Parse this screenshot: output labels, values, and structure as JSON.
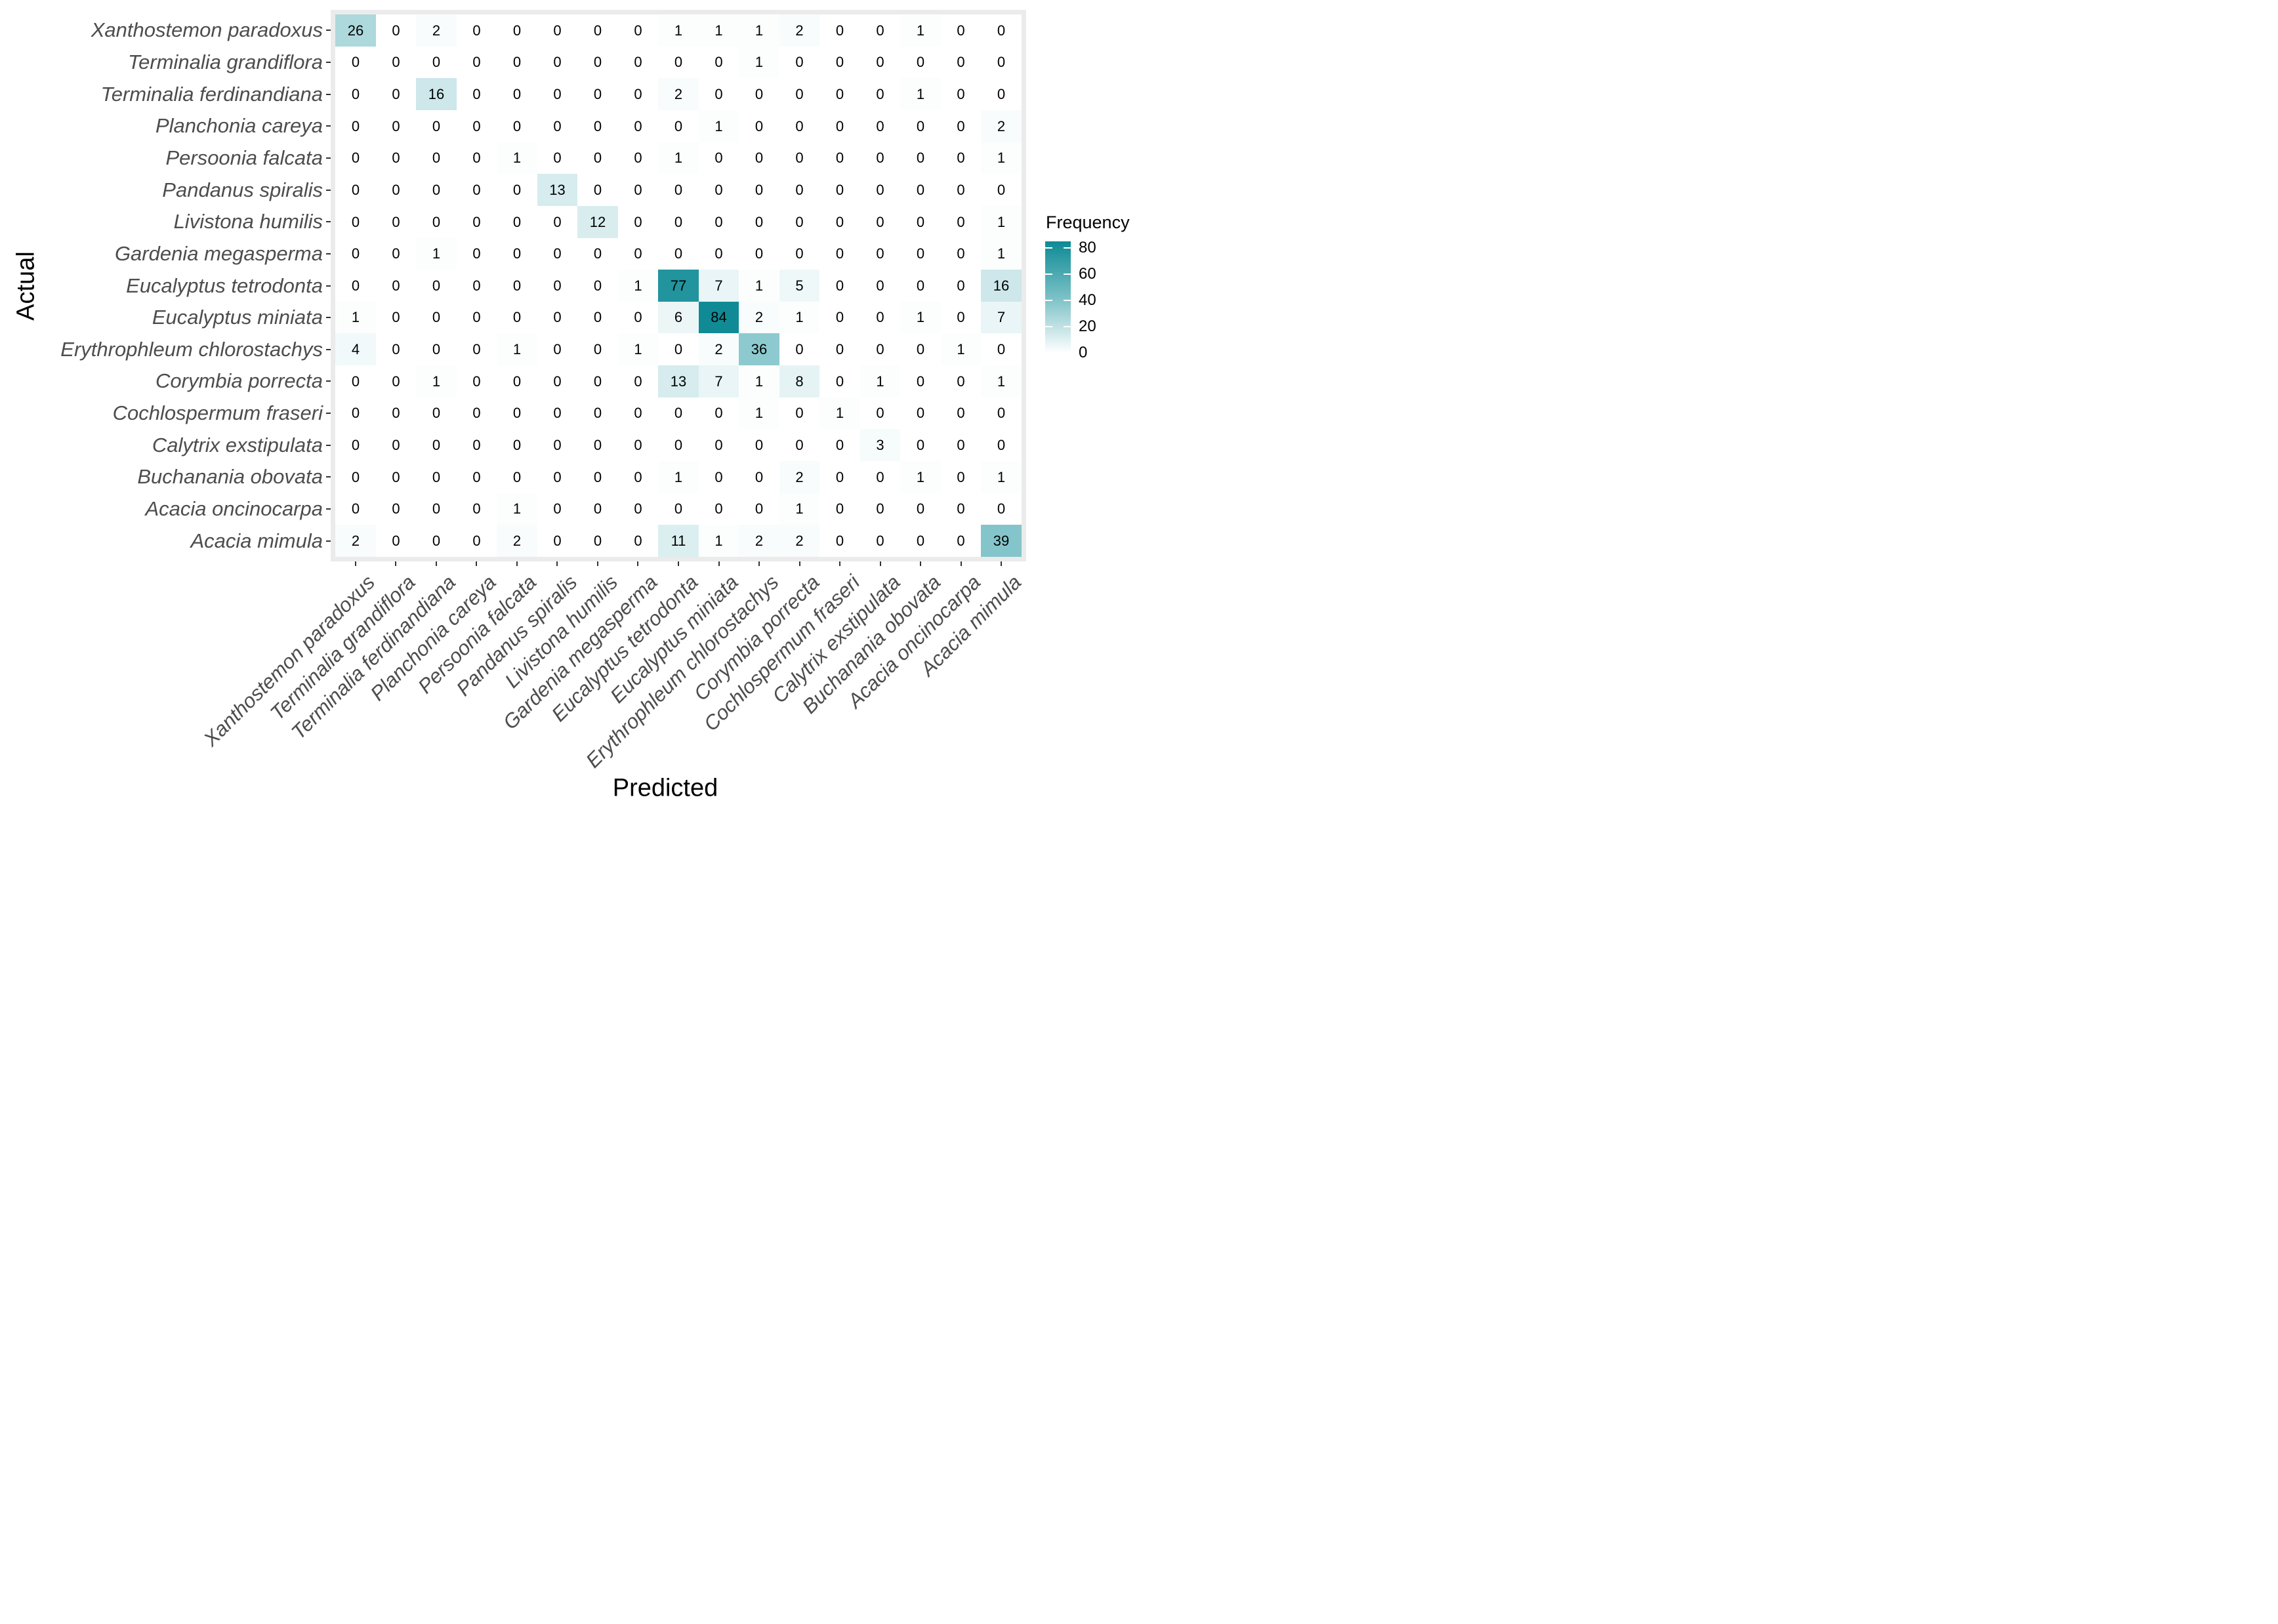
{
  "chart_data": {
    "type": "heatmap",
    "title": "",
    "xlabel": "Predicted",
    "ylabel": "Actual",
    "legend_title": "Frequency",
    "legend_ticks": [
      80,
      60,
      40,
      20,
      0
    ],
    "color_scale": {
      "min_color": "#ffffff",
      "mid_color": "#79c0c6",
      "max_color": "#0d8a95",
      "domain": [
        0,
        85
      ]
    },
    "style": {
      "panel_background": "#ebebeb",
      "axis_tick_color": "#333333",
      "axis_label_color": "#4d4d4d",
      "cell_text_color": "#000000"
    },
    "x_categories": [
      "Xanthostemon paradoxus",
      "Terminalia grandiflora",
      "Terminalia ferdinandiana",
      "Planchonia careya",
      "Persoonia falcata",
      "Pandanus spiralis",
      "Livistona humilis",
      "Gardenia megasperma",
      "Eucalyptus tetrodonta",
      "Eucalyptus miniata",
      "Erythrophleum chlorostachys",
      "Corymbia porrecta",
      "Cochlospermum fraseri",
      "Calytrix exstipulata",
      "Buchanania obovata",
      "Acacia oncinocarpa",
      "Acacia mimula"
    ],
    "y_categories": [
      "Xanthostemon paradoxus",
      "Terminalia grandiflora",
      "Terminalia ferdinandiana",
      "Planchonia careya",
      "Persoonia falcata",
      "Pandanus spiralis",
      "Livistona humilis",
      "Gardenia megasperma",
      "Eucalyptus tetrodonta",
      "Eucalyptus miniata",
      "Erythrophleum chlorostachys",
      "Corymbia porrecta",
      "Cochlospermum fraseri",
      "Calytrix exstipulata",
      "Buchanania obovata",
      "Acacia oncinocarpa",
      "Acacia mimula"
    ],
    "matrix": [
      [
        26,
        0,
        2,
        0,
        0,
        0,
        0,
        0,
        1,
        1,
        1,
        2,
        0,
        0,
        1,
        0,
        0
      ],
      [
        0,
        0,
        0,
        0,
        0,
        0,
        0,
        0,
        0,
        0,
        1,
        0,
        0,
        0,
        0,
        0,
        0
      ],
      [
        0,
        0,
        16,
        0,
        0,
        0,
        0,
        0,
        2,
        0,
        0,
        0,
        0,
        0,
        1,
        0,
        0
      ],
      [
        0,
        0,
        0,
        0,
        0,
        0,
        0,
        0,
        0,
        1,
        0,
        0,
        0,
        0,
        0,
        0,
        2
      ],
      [
        0,
        0,
        0,
        0,
        1,
        0,
        0,
        0,
        1,
        0,
        0,
        0,
        0,
        0,
        0,
        0,
        1
      ],
      [
        0,
        0,
        0,
        0,
        0,
        13,
        0,
        0,
        0,
        0,
        0,
        0,
        0,
        0,
        0,
        0,
        0
      ],
      [
        0,
        0,
        0,
        0,
        0,
        0,
        12,
        0,
        0,
        0,
        0,
        0,
        0,
        0,
        0,
        0,
        1
      ],
      [
        0,
        0,
        1,
        0,
        0,
        0,
        0,
        0,
        0,
        0,
        0,
        0,
        0,
        0,
        0,
        0,
        1
      ],
      [
        0,
        0,
        0,
        0,
        0,
        0,
        0,
        1,
        77,
        7,
        1,
        5,
        0,
        0,
        0,
        0,
        16
      ],
      [
        1,
        0,
        0,
        0,
        0,
        0,
        0,
        0,
        6,
        84,
        2,
        1,
        0,
        0,
        1,
        0,
        7
      ],
      [
        4,
        0,
        0,
        0,
        1,
        0,
        0,
        1,
        0,
        2,
        36,
        0,
        0,
        0,
        0,
        1,
        0
      ],
      [
        0,
        0,
        1,
        0,
        0,
        0,
        0,
        0,
        13,
        7,
        1,
        8,
        0,
        1,
        0,
        0,
        1
      ],
      [
        0,
        0,
        0,
        0,
        0,
        0,
        0,
        0,
        0,
        0,
        1,
        0,
        1,
        0,
        0,
        0,
        0
      ],
      [
        0,
        0,
        0,
        0,
        0,
        0,
        0,
        0,
        0,
        0,
        0,
        0,
        0,
        3,
        0,
        0,
        0
      ],
      [
        0,
        0,
        0,
        0,
        0,
        0,
        0,
        0,
        1,
        0,
        0,
        2,
        0,
        0,
        1,
        0,
        1
      ],
      [
        0,
        0,
        0,
        0,
        1,
        0,
        0,
        0,
        0,
        0,
        0,
        1,
        0,
        0,
        0,
        0,
        0
      ],
      [
        2,
        0,
        0,
        0,
        2,
        0,
        0,
        0,
        11,
        1,
        2,
        2,
        0,
        0,
        0,
        0,
        39
      ]
    ]
  }
}
